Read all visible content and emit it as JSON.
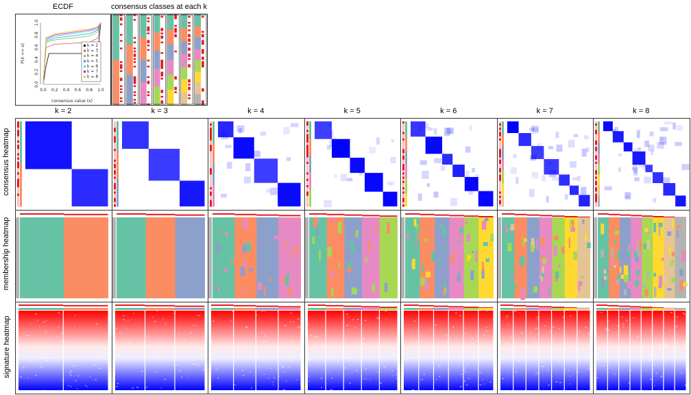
{
  "titles": {
    "ecdf": "ECDF",
    "classes": "consensus classes at each k"
  },
  "row_labels": {
    "consensus": "consensus heatmap",
    "membership": "membership heatmap",
    "signature": "signature heatmap"
  },
  "column_titles": [
    "k = 2",
    "k = 3",
    "k = 4",
    "k = 5",
    "k = 6",
    "k = 7",
    "k = 8"
  ],
  "ecdf_axis": {
    "xlabel": "consensus value (x)",
    "ylabel": "P(X <= x)",
    "xticks": [
      "0.0",
      "0.2",
      "0.4",
      "0.6",
      "0.8",
      "1.0"
    ],
    "yticks": [
      "0.0",
      "0.2",
      "0.4",
      "0.6",
      "0.8",
      "1.0"
    ]
  },
  "legend": [
    {
      "label": "k = 2",
      "color": "#000000"
    },
    {
      "label": "k = 3",
      "color": "#DF536B"
    },
    {
      "label": "k = 4",
      "color": "#61D04F"
    },
    {
      "label": "k = 5",
      "color": "#2297E6"
    },
    {
      "label": "k = 6",
      "color": "#28E2E5"
    },
    {
      "label": "k = 7",
      "color": "#CD0BBC"
    },
    {
      "label": "k = 8",
      "color": "#F5C710"
    }
  ],
  "class_colors": [
    "#66C2A5",
    "#FC8D62",
    "#8DA0CB",
    "#E78AC3",
    "#A6D854",
    "#FFD92F",
    "#E5C494",
    "#B3B3B3"
  ],
  "heat_colors": {
    "high": "#0000FF",
    "low": "#FFFFFF",
    "sig_high": "#FF0000",
    "sig_low": "#0000FF"
  },
  "chart_data": {
    "type": "heatmap",
    "k_values": [
      2,
      3,
      4,
      5,
      6,
      7,
      8
    ],
    "ecdf_series": [
      {
        "name": "k = 2",
        "x": [
          0.0,
          0.05,
          0.1,
          0.9,
          0.95,
          1.0
        ],
        "y": [
          0.0,
          0.3,
          0.5,
          0.5,
          0.52,
          1.0
        ]
      },
      {
        "name": "k = 3",
        "x": [
          0.0,
          0.05,
          0.2,
          0.8,
          0.95,
          1.0
        ],
        "y": [
          0.0,
          0.6,
          0.65,
          0.68,
          0.75,
          1.0
        ]
      },
      {
        "name": "k = 4",
        "x": [
          0.0,
          0.05,
          0.2,
          0.8,
          0.95,
          1.0
        ],
        "y": [
          0.0,
          0.68,
          0.72,
          0.78,
          0.85,
          1.0
        ]
      },
      {
        "name": "k = 5",
        "x": [
          0.0,
          0.05,
          0.2,
          0.8,
          0.95,
          1.0
        ],
        "y": [
          0.0,
          0.7,
          0.75,
          0.82,
          0.88,
          1.0
        ]
      },
      {
        "name": "k = 6",
        "x": [
          0.0,
          0.05,
          0.2,
          0.8,
          0.95,
          1.0
        ],
        "y": [
          0.0,
          0.72,
          0.78,
          0.86,
          0.9,
          1.0
        ]
      },
      {
        "name": "k = 7",
        "x": [
          0.0,
          0.05,
          0.2,
          0.8,
          0.95,
          1.0
        ],
        "y": [
          0.0,
          0.74,
          0.8,
          0.88,
          0.92,
          1.0
        ]
      },
      {
        "name": "k = 8",
        "x": [
          0.0,
          0.05,
          0.2,
          0.8,
          0.95,
          1.0
        ],
        "y": [
          0.0,
          0.76,
          0.82,
          0.9,
          0.94,
          1.0
        ]
      }
    ]
  }
}
